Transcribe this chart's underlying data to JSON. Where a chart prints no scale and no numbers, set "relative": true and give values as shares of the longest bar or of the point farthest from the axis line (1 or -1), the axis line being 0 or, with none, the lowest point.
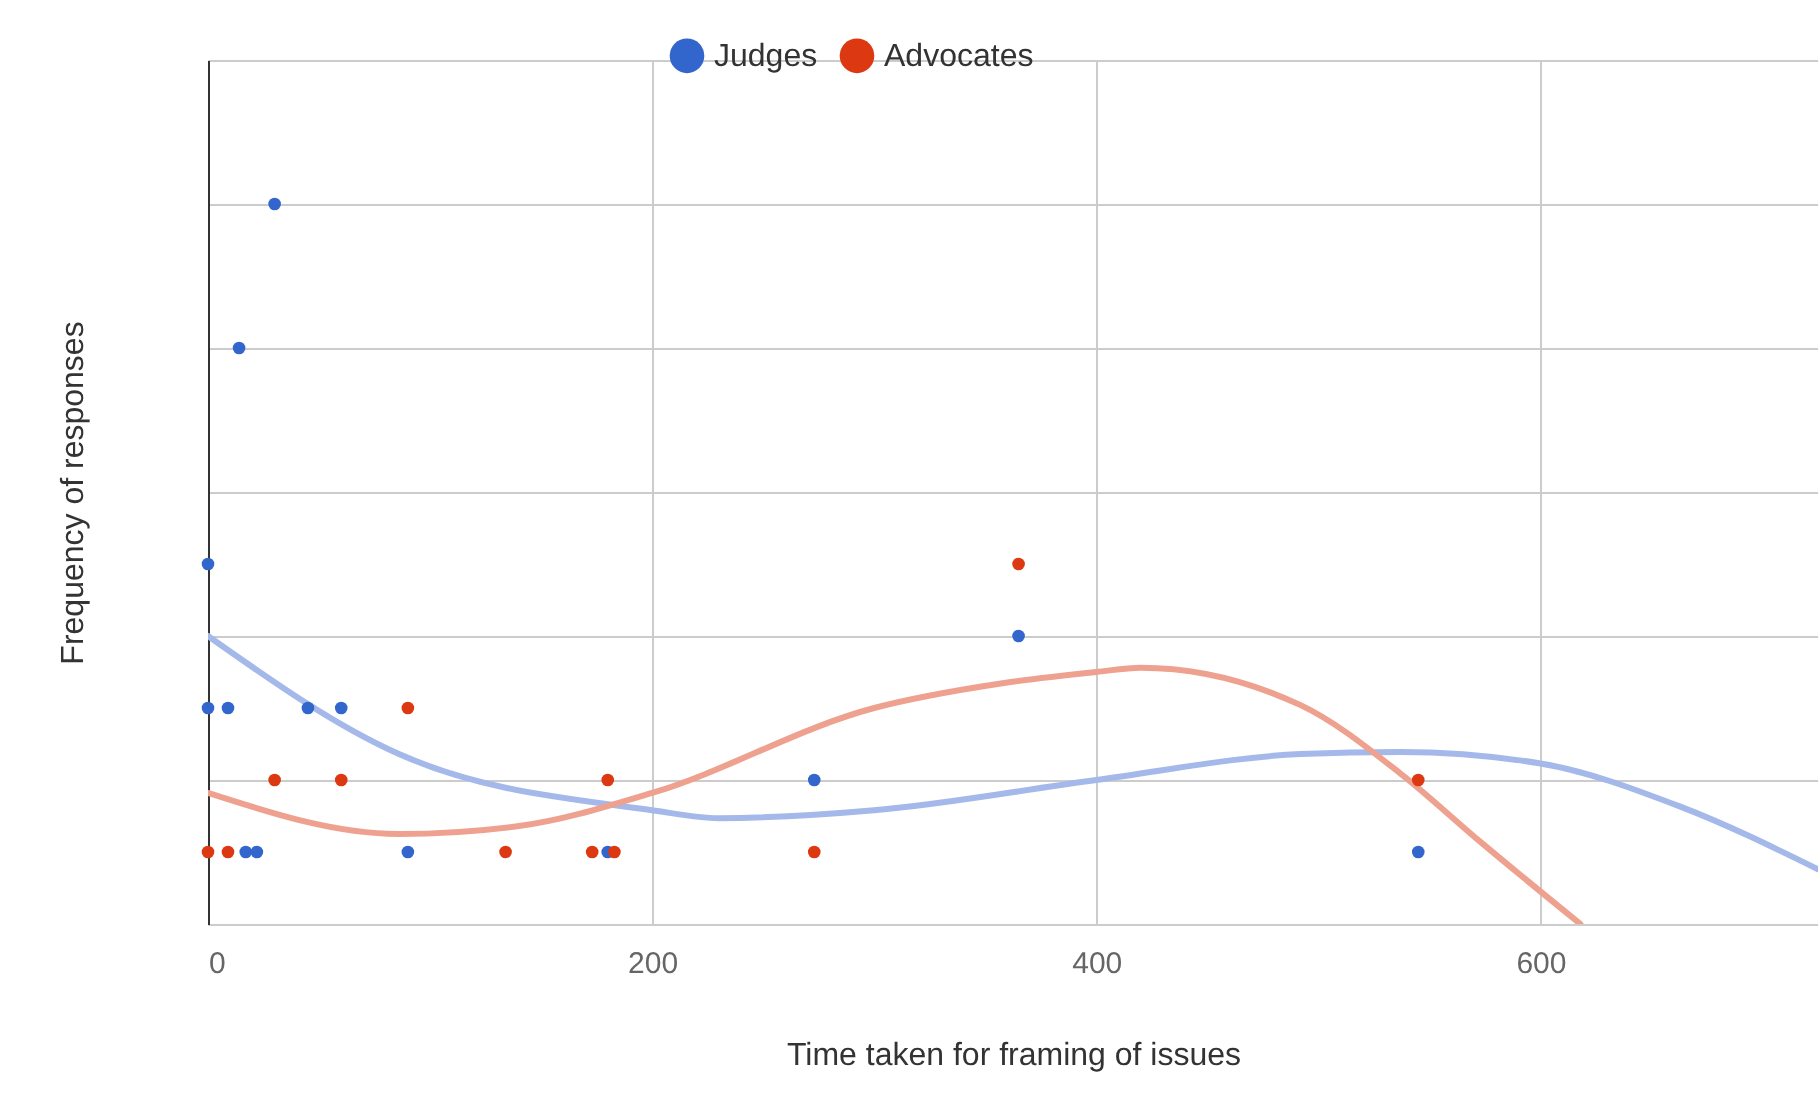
{
  "chart_data": {
    "type": "scatter",
    "xlabel": "Time taken for framing of issues",
    "ylabel": "Frequency of responses",
    "relative": true,
    "xlim": [
      0,
      725
    ],
    "xticks": [
      0,
      200,
      400,
      600
    ],
    "grid": true,
    "legend": "top",
    "tick_labels": "x",
    "marker": "circle",
    "series": [
      {
        "name": "Judges",
        "color": "#3366cc",
        "x": [
          0,
          0,
          9,
          14,
          30,
          45,
          60,
          17,
          22,
          90,
          180,
          273,
          365,
          545
        ],
        "values": [
          0.5,
          0.3,
          0.3,
          0.8,
          1.0,
          0.3,
          0.3,
          0.1,
          0.1,
          0.1,
          0.1,
          0.2,
          0.4,
          0.1
        ]
      },
      {
        "name": "Advocates",
        "color": "#dc3912",
        "x": [
          0,
          9,
          30,
          60,
          90,
          134,
          173,
          183,
          180,
          273,
          365,
          545
        ],
        "values": [
          0.1,
          0.1,
          0.2,
          0.2,
          0.3,
          0.1,
          0.1,
          0.1,
          0.2,
          0.1,
          0.5,
          0.2
        ]
      },
      {
        "type": "line",
        "marker": "none",
        "line_style": "solid",
        "color": "#a4b8ea",
        "x": [
          0,
          86,
          200,
          230,
          300,
          400,
          492,
          537,
          600,
          663,
          725
        ],
        "values": [
          0.4,
          0.236,
          0.158,
          0.147,
          0.158,
          0.2,
          0.236,
          0.239,
          0.223,
          0.163,
          0.076
        ]
      },
      {
        "type": "line",
        "marker": "none",
        "line_style": "solid",
        "color": "#eea18f",
        "x": [
          0,
          86,
          140,
          200,
          300,
          357,
          400,
          420,
          492,
          537,
          573,
          618
        ],
        "values": [
          0.182,
          0.125,
          0.136,
          0.182,
          0.3,
          0.334,
          0.35,
          0.356,
          0.304,
          0.209,
          0.114,
          0.0
        ]
      }
    ]
  }
}
